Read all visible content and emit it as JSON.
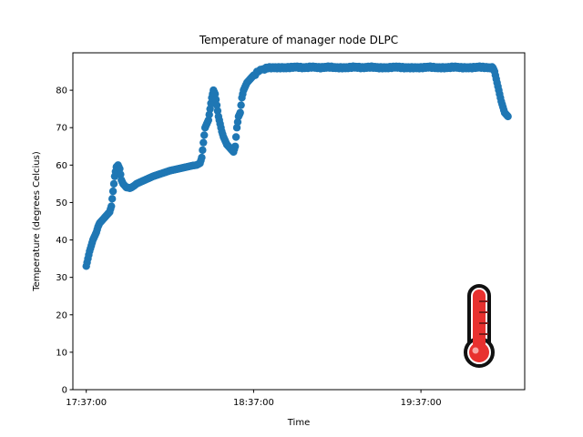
{
  "chart_data": {
    "type": "scatter",
    "title": "Temperature of manager node DLPC",
    "xlabel": "Time",
    "ylabel": "Temperature (degrees Celcius)",
    "x_unit": "minutes after 17:37:00",
    "xlim": [
      -8,
      262
    ],
    "ylim": [
      0,
      90
    ],
    "xticks": [
      {
        "value": 0,
        "label": "17:37:00"
      },
      {
        "value": 100,
        "label": "18:37:00"
      },
      {
        "value": 200,
        "label": "19:37:00"
      }
    ],
    "yticks": [
      0,
      10,
      20,
      30,
      40,
      50,
      60,
      70,
      80
    ],
    "grid": false,
    "legend": "none",
    "marker_color": "#1f77b4",
    "series": [
      {
        "points": [
          [
            0,
            33
          ],
          [
            1,
            35
          ],
          [
            2,
            37
          ],
          [
            3,
            38.5
          ],
          [
            4,
            40
          ],
          [
            5,
            41
          ],
          [
            6,
            42
          ],
          [
            7,
            43.5
          ],
          [
            8,
            44.5
          ],
          [
            9,
            45
          ],
          [
            10,
            45.5
          ],
          [
            11,
            46
          ],
          [
            12,
            46.5
          ],
          [
            13,
            47
          ],
          [
            14,
            47.5
          ],
          [
            15,
            49
          ],
          [
            16,
            53
          ],
          [
            17,
            57
          ],
          [
            18,
            59.5
          ],
          [
            19,
            60
          ],
          [
            20,
            59
          ],
          [
            21,
            56
          ],
          [
            22,
            55
          ],
          [
            23,
            54.5
          ],
          [
            24,
            54
          ],
          [
            25,
            54
          ],
          [
            26,
            53.8
          ],
          [
            27,
            54
          ],
          [
            28,
            54.3
          ],
          [
            29,
            54.6
          ],
          [
            30,
            55
          ],
          [
            32,
            55.4
          ],
          [
            34,
            55.8
          ],
          [
            36,
            56.2
          ],
          [
            38,
            56.6
          ],
          [
            40,
            57
          ],
          [
            42,
            57.3
          ],
          [
            44,
            57.6
          ],
          [
            46,
            57.9
          ],
          [
            48,
            58.2
          ],
          [
            50,
            58.5
          ],
          [
            52,
            58.7
          ],
          [
            54,
            58.9
          ],
          [
            56,
            59.1
          ],
          [
            58,
            59.3
          ],
          [
            60,
            59.5
          ],
          [
            62,
            59.7
          ],
          [
            64,
            59.9
          ],
          [
            66,
            60
          ],
          [
            68,
            60.5
          ],
          [
            69,
            62
          ],
          [
            70,
            66
          ],
          [
            71,
            70
          ],
          [
            72,
            71
          ],
          [
            73,
            72
          ],
          [
            74,
            75
          ],
          [
            75,
            78
          ],
          [
            76,
            80
          ],
          [
            77,
            79
          ],
          [
            78,
            76
          ],
          [
            79,
            73
          ],
          [
            80,
            71
          ],
          [
            81,
            69
          ],
          [
            82,
            67.5
          ],
          [
            83,
            66.5
          ],
          [
            84,
            65.5
          ],
          [
            85,
            65
          ],
          [
            86,
            64.5
          ],
          [
            87,
            64
          ],
          [
            88,
            63.5
          ],
          [
            89,
            65
          ],
          [
            90,
            70
          ],
          [
            91,
            73
          ],
          [
            92,
            74
          ],
          [
            93,
            78
          ],
          [
            94,
            80
          ],
          [
            95,
            81
          ],
          [
            96,
            82
          ],
          [
            97,
            82.5
          ],
          [
            98,
            83
          ],
          [
            99,
            83.5
          ],
          [
            100,
            84
          ],
          [
            101,
            84
          ],
          [
            102,
            85
          ],
          [
            103,
            85
          ],
          [
            104,
            85.5
          ],
          [
            106,
            85.5
          ],
          [
            108,
            86
          ],
          [
            110,
            86
          ],
          [
            115,
            86
          ],
          [
            120,
            86
          ],
          [
            125,
            86.2
          ],
          [
            130,
            86
          ],
          [
            135,
            86.2
          ],
          [
            140,
            86
          ],
          [
            145,
            86.2
          ],
          [
            150,
            86
          ],
          [
            155,
            86
          ],
          [
            160,
            86.2
          ],
          [
            165,
            86
          ],
          [
            170,
            86.2
          ],
          [
            175,
            86
          ],
          [
            180,
            86
          ],
          [
            185,
            86.2
          ],
          [
            190,
            86
          ],
          [
            195,
            86
          ],
          [
            200,
            86
          ],
          [
            205,
            86.2
          ],
          [
            210,
            86
          ],
          [
            215,
            86
          ],
          [
            220,
            86.2
          ],
          [
            225,
            86
          ],
          [
            230,
            86
          ],
          [
            235,
            86.2
          ],
          [
            240,
            86
          ],
          [
            243,
            86
          ],
          [
            244,
            85
          ],
          [
            245,
            83
          ],
          [
            246,
            81
          ],
          [
            247,
            79
          ],
          [
            248,
            77
          ],
          [
            249,
            75.5
          ],
          [
            250,
            74
          ],
          [
            251,
            73.5
          ],
          [
            252,
            73
          ]
        ]
      }
    ]
  },
  "overlay": {
    "icon": "thermometer-icon",
    "fill_color": "#e8312f",
    "outline_color": "#111111",
    "level_fraction": 0.75
  }
}
